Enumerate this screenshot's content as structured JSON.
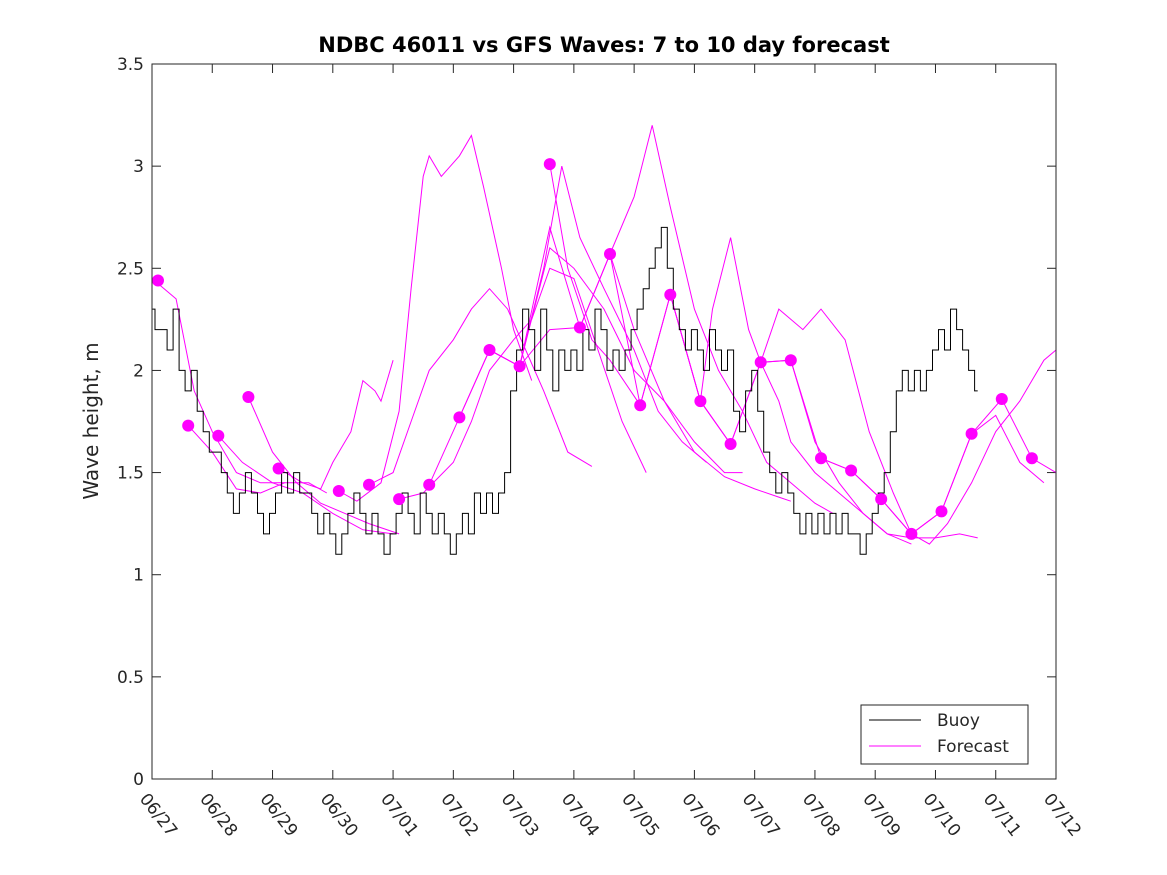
{
  "chart_data": {
    "type": "line",
    "title": "NDBC 46011 vs GFS Waves: 7 to 10 day forecast",
    "xlabel": "",
    "ylabel": "Wave height, m",
    "xlim": [
      "06/27",
      "07/12"
    ],
    "ylim": [
      0,
      3.5
    ],
    "x_ticks": [
      "06/27",
      "06/28",
      "06/29",
      "06/30",
      "07/01",
      "07/02",
      "07/03",
      "07/04",
      "07/05",
      "07/06",
      "07/07",
      "07/08",
      "07/09",
      "07/10",
      "07/11",
      "07/12"
    ],
    "y_ticks": [
      "0",
      "0.5",
      "1",
      "1.5",
      "2",
      "2.5",
      "3",
      "3.5"
    ],
    "legend": {
      "position": "bottom-right",
      "entries": [
        "Buoy",
        "Forecast"
      ]
    },
    "colors": {
      "buoy": "#000000",
      "forecast": "#ff00ff"
    },
    "buoy": {
      "name": "Buoy",
      "points": [
        [
          0.0,
          2.3
        ],
        [
          0.1,
          2.2
        ],
        [
          0.2,
          2.2
        ],
        [
          0.3,
          2.1
        ],
        [
          0.4,
          2.3
        ],
        [
          0.5,
          2.0
        ],
        [
          0.6,
          1.9
        ],
        [
          0.7,
          2.0
        ],
        [
          0.8,
          1.8
        ],
        [
          0.9,
          1.7
        ],
        [
          1.0,
          1.6
        ],
        [
          1.1,
          1.6
        ],
        [
          1.2,
          1.5
        ],
        [
          1.3,
          1.4
        ],
        [
          1.4,
          1.3
        ],
        [
          1.5,
          1.4
        ],
        [
          1.6,
          1.5
        ],
        [
          1.7,
          1.4
        ],
        [
          1.8,
          1.3
        ],
        [
          1.9,
          1.2
        ],
        [
          2.0,
          1.3
        ],
        [
          2.1,
          1.4
        ],
        [
          2.2,
          1.5
        ],
        [
          2.3,
          1.4
        ],
        [
          2.4,
          1.5
        ],
        [
          2.5,
          1.4
        ],
        [
          2.6,
          1.4
        ],
        [
          2.7,
          1.3
        ],
        [
          2.8,
          1.2
        ],
        [
          2.9,
          1.3
        ],
        [
          3.0,
          1.2
        ],
        [
          3.1,
          1.1
        ],
        [
          3.2,
          1.2
        ],
        [
          3.3,
          1.3
        ],
        [
          3.4,
          1.4
        ],
        [
          3.5,
          1.3
        ],
        [
          3.6,
          1.2
        ],
        [
          3.7,
          1.3
        ],
        [
          3.8,
          1.2
        ],
        [
          3.9,
          1.1
        ],
        [
          4.0,
          1.2
        ],
        [
          4.1,
          1.3
        ],
        [
          4.2,
          1.4
        ],
        [
          4.3,
          1.3
        ],
        [
          4.4,
          1.2
        ],
        [
          4.5,
          1.4
        ],
        [
          4.6,
          1.3
        ],
        [
          4.7,
          1.2
        ],
        [
          4.8,
          1.3
        ],
        [
          4.9,
          1.2
        ],
        [
          5.0,
          1.1
        ],
        [
          5.1,
          1.2
        ],
        [
          5.2,
          1.3
        ],
        [
          5.3,
          1.2
        ],
        [
          5.4,
          1.4
        ],
        [
          5.5,
          1.3
        ],
        [
          5.6,
          1.4
        ],
        [
          5.7,
          1.3
        ],
        [
          5.8,
          1.4
        ],
        [
          5.9,
          1.5
        ],
        [
          6.0,
          1.9
        ],
        [
          6.1,
          2.1
        ],
        [
          6.2,
          2.3
        ],
        [
          6.3,
          2.2
        ],
        [
          6.4,
          2.0
        ],
        [
          6.5,
          2.3
        ],
        [
          6.6,
          2.1
        ],
        [
          6.7,
          1.9
        ],
        [
          6.8,
          2.1
        ],
        [
          6.9,
          2.0
        ],
        [
          7.0,
          2.1
        ],
        [
          7.1,
          2.0
        ],
        [
          7.2,
          2.2
        ],
        [
          7.3,
          2.1
        ],
        [
          7.4,
          2.3
        ],
        [
          7.5,
          2.2
        ],
        [
          7.6,
          2.0
        ],
        [
          7.7,
          2.1
        ],
        [
          7.8,
          2.0
        ],
        [
          7.9,
          2.1
        ],
        [
          8.0,
          2.2
        ],
        [
          8.1,
          2.3
        ],
        [
          8.2,
          2.4
        ],
        [
          8.3,
          2.5
        ],
        [
          8.4,
          2.6
        ],
        [
          8.5,
          2.7
        ],
        [
          8.6,
          2.5
        ],
        [
          8.7,
          2.3
        ],
        [
          8.8,
          2.2
        ],
        [
          8.9,
          2.1
        ],
        [
          9.0,
          2.2
        ],
        [
          9.1,
          2.1
        ],
        [
          9.2,
          2.0
        ],
        [
          9.3,
          2.2
        ],
        [
          9.4,
          2.1
        ],
        [
          9.5,
          2.0
        ],
        [
          9.6,
          2.1
        ],
        [
          9.7,
          1.8
        ],
        [
          9.8,
          1.7
        ],
        [
          9.9,
          1.9
        ],
        [
          10.0,
          2.0
        ],
        [
          10.1,
          1.8
        ],
        [
          10.2,
          1.6
        ],
        [
          10.3,
          1.5
        ],
        [
          10.4,
          1.4
        ],
        [
          10.5,
          1.5
        ],
        [
          10.6,
          1.4
        ],
        [
          10.7,
          1.3
        ],
        [
          10.8,
          1.2
        ],
        [
          10.9,
          1.3
        ],
        [
          11.0,
          1.2
        ],
        [
          11.1,
          1.3
        ],
        [
          11.2,
          1.2
        ],
        [
          11.3,
          1.3
        ],
        [
          11.4,
          1.2
        ],
        [
          11.5,
          1.3
        ],
        [
          11.6,
          1.2
        ],
        [
          11.7,
          1.2
        ],
        [
          11.8,
          1.1
        ],
        [
          11.9,
          1.2
        ],
        [
          12.0,
          1.3
        ],
        [
          12.1,
          1.4
        ],
        [
          12.2,
          1.5
        ],
        [
          12.3,
          1.7
        ],
        [
          12.4,
          1.9
        ],
        [
          12.5,
          2.0
        ],
        [
          12.6,
          1.9
        ],
        [
          12.7,
          2.0
        ],
        [
          12.8,
          1.9
        ],
        [
          12.9,
          2.0
        ],
        [
          13.0,
          2.1
        ],
        [
          13.1,
          2.2
        ],
        [
          13.2,
          2.1
        ],
        [
          13.3,
          2.3
        ],
        [
          13.4,
          2.2
        ],
        [
          13.5,
          2.1
        ],
        [
          13.6,
          2.0
        ],
        [
          13.7,
          1.9
        ]
      ]
    },
    "forecast_series": [
      [
        [
          0.0,
          2.45
        ],
        [
          0.4,
          2.35
        ],
        [
          0.7,
          1.9
        ],
        [
          1.0,
          1.7
        ],
        [
          1.4,
          1.5
        ],
        [
          1.8,
          1.45
        ],
        [
          2.2,
          1.45
        ]
      ],
      [
        [
          0.6,
          1.73
        ],
        [
          1.0,
          1.6
        ],
        [
          1.4,
          1.42
        ],
        [
          1.8,
          1.4
        ],
        [
          2.2,
          1.45
        ],
        [
          2.6,
          1.45
        ],
        [
          2.9,
          1.4
        ]
      ],
      [
        [
          1.1,
          1.68
        ],
        [
          1.5,
          1.55
        ],
        [
          2.0,
          1.45
        ],
        [
          2.5,
          1.4
        ],
        [
          3.0,
          1.3
        ],
        [
          3.5,
          1.22
        ],
        [
          4.0,
          1.2
        ]
      ],
      [
        [
          1.6,
          1.87
        ],
        [
          2.0,
          1.6
        ],
        [
          2.4,
          1.45
        ],
        [
          2.8,
          1.35
        ],
        [
          3.2,
          1.3
        ],
        [
          3.6,
          1.25
        ],
        [
          4.1,
          1.2
        ]
      ],
      [
        [
          2.1,
          1.52
        ],
        [
          2.5,
          1.45
        ],
        [
          2.8,
          1.42
        ],
        [
          3.0,
          1.55
        ],
        [
          3.3,
          1.7
        ],
        [
          3.5,
          1.95
        ],
        [
          3.7,
          1.9
        ],
        [
          3.8,
          1.85
        ],
        [
          4.0,
          2.05
        ]
      ],
      [
        [
          3.1,
          1.41
        ],
        [
          3.4,
          1.36
        ],
        [
          3.8,
          1.45
        ],
        [
          4.1,
          1.8
        ],
        [
          4.3,
          2.4
        ],
        [
          4.5,
          2.95
        ],
        [
          4.6,
          3.05
        ],
        [
          4.8,
          2.95
        ],
        [
          5.1,
          3.05
        ],
        [
          5.3,
          3.15
        ],
        [
          5.5,
          2.9
        ],
        [
          5.8,
          2.5
        ],
        [
          6.0,
          2.2
        ],
        [
          6.3,
          1.95
        ]
      ],
      [
        [
          3.6,
          1.44
        ],
        [
          4.0,
          1.5
        ],
        [
          4.3,
          1.75
        ],
        [
          4.6,
          2.0
        ],
        [
          5.0,
          2.15
        ],
        [
          5.3,
          2.3
        ],
        [
          5.6,
          2.4
        ],
        [
          5.9,
          2.3
        ],
        [
          6.2,
          2.1
        ],
        [
          6.5,
          1.9
        ],
        [
          6.9,
          1.6
        ],
        [
          7.3,
          1.53
        ]
      ],
      [
        [
          4.1,
          1.37
        ],
        [
          4.5,
          1.4
        ],
        [
          5.0,
          1.55
        ],
        [
          5.3,
          1.75
        ],
        [
          5.6,
          2.0
        ],
        [
          6.0,
          2.15
        ],
        [
          6.3,
          2.25
        ],
        [
          6.6,
          2.5
        ],
        [
          7.0,
          2.45
        ],
        [
          7.4,
          2.1
        ],
        [
          7.8,
          1.75
        ],
        [
          8.2,
          1.5
        ]
      ],
      [
        [
          4.6,
          1.44
        ],
        [
          5.1,
          1.77
        ],
        [
          5.6,
          2.1
        ],
        [
          6.1,
          2.02
        ],
        [
          6.5,
          2.5
        ],
        [
          6.8,
          3.0
        ],
        [
          7.1,
          2.65
        ],
        [
          7.5,
          2.4
        ],
        [
          8.0,
          2.1
        ],
        [
          8.4,
          1.8
        ],
        [
          8.8,
          1.65
        ],
        [
          9.2,
          1.55
        ]
      ],
      [
        [
          5.1,
          1.77
        ],
        [
          5.6,
          2.1
        ],
        [
          6.1,
          2.02
        ],
        [
          6.6,
          2.6
        ],
        [
          7.0,
          2.5
        ],
        [
          7.5,
          2.3
        ],
        [
          8.0,
          2.0
        ],
        [
          8.5,
          1.85
        ],
        [
          9.0,
          1.65
        ],
        [
          9.5,
          1.5
        ],
        [
          9.8,
          1.5
        ]
      ],
      [
        [
          5.6,
          2.1
        ],
        [
          6.1,
          2.02
        ],
        [
          6.6,
          2.2
        ],
        [
          7.1,
          2.21
        ],
        [
          7.6,
          2.57
        ],
        [
          8.0,
          2.2
        ],
        [
          8.5,
          1.85
        ],
        [
          9.0,
          1.6
        ],
        [
          9.5,
          1.48
        ],
        [
          10.0,
          1.42
        ],
        [
          10.4,
          1.38
        ],
        [
          10.6,
          1.36
        ]
      ],
      [
        [
          6.1,
          2.02
        ],
        [
          6.6,
          2.7
        ],
        [
          7.1,
          2.21
        ],
        [
          7.6,
          2.57
        ],
        [
          8.0,
          2.85
        ],
        [
          8.3,
          3.2
        ],
        [
          8.6,
          2.8
        ],
        [
          9.0,
          2.3
        ],
        [
          9.4,
          2.0
        ],
        [
          9.8,
          1.8
        ],
        [
          10.2,
          1.55
        ],
        [
          10.6,
          1.45
        ],
        [
          11.0,
          1.35
        ],
        [
          11.3,
          1.3
        ]
      ],
      [
        [
          6.6,
          3.01
        ],
        [
          6.9,
          2.5
        ],
        [
          7.3,
          2.15
        ],
        [
          7.6,
          2.05
        ],
        [
          8.1,
          1.83
        ],
        [
          8.6,
          2.37
        ],
        [
          9.1,
          1.85
        ],
        [
          9.3,
          2.3
        ],
        [
          9.6,
          2.65
        ],
        [
          9.9,
          2.2
        ],
        [
          10.1,
          2.04
        ],
        [
          10.4,
          1.85
        ],
        [
          10.6,
          1.65
        ],
        [
          11.0,
          1.5
        ],
        [
          11.4,
          1.4
        ],
        [
          11.8,
          1.3
        ],
        [
          12.2,
          1.2
        ],
        [
          12.6,
          1.15
        ]
      ],
      [
        [
          7.6,
          2.57
        ],
        [
          8.1,
          1.83
        ],
        [
          8.6,
          2.37
        ],
        [
          9.1,
          1.85
        ],
        [
          9.6,
          1.64
        ],
        [
          10.1,
          2.04
        ],
        [
          10.6,
          2.05
        ],
        [
          11.0,
          1.65
        ],
        [
          11.4,
          1.45
        ],
        [
          11.8,
          1.3
        ],
        [
          12.2,
          1.2
        ],
        [
          12.6,
          1.18
        ],
        [
          13.0,
          1.18
        ],
        [
          13.4,
          1.2
        ],
        [
          13.7,
          1.18
        ]
      ],
      [
        [
          8.6,
          2.37
        ],
        [
          9.1,
          1.85
        ],
        [
          9.6,
          1.64
        ],
        [
          10.1,
          2.04
        ],
        [
          10.6,
          2.05
        ],
        [
          11.1,
          1.57
        ],
        [
          11.6,
          1.51
        ],
        [
          12.1,
          1.37
        ],
        [
          12.6,
          1.2
        ],
        [
          13.1,
          1.31
        ],
        [
          13.6,
          1.69
        ],
        [
          14.0,
          1.78
        ],
        [
          14.4,
          1.55
        ],
        [
          14.8,
          1.45
        ]
      ],
      [
        [
          10.1,
          2.04
        ],
        [
          10.4,
          2.3
        ],
        [
          10.8,
          2.2
        ],
        [
          11.1,
          2.3
        ],
        [
          11.5,
          2.15
        ],
        [
          11.9,
          1.7
        ],
        [
          12.3,
          1.4
        ],
        [
          12.6,
          1.2
        ],
        [
          12.9,
          1.15
        ],
        [
          13.2,
          1.25
        ],
        [
          13.6,
          1.45
        ],
        [
          14.0,
          1.7
        ],
        [
          14.4,
          1.85
        ],
        [
          14.8,
          2.05
        ],
        [
          15.0,
          2.1
        ]
      ],
      [
        [
          11.1,
          1.57
        ],
        [
          11.6,
          1.51
        ],
        [
          12.1,
          1.37
        ],
        [
          12.6,
          1.2
        ],
        [
          13.1,
          1.31
        ],
        [
          13.6,
          1.69
        ],
        [
          14.1,
          1.86
        ],
        [
          14.6,
          1.57
        ],
        [
          15.0,
          1.5
        ]
      ]
    ],
    "forecast_markers": [
      [
        0.1,
        2.44
      ],
      [
        0.6,
        1.73
      ],
      [
        1.1,
        1.68
      ],
      [
        1.6,
        1.87
      ],
      [
        2.1,
        1.52
      ],
      [
        3.1,
        1.41
      ],
      [
        3.6,
        1.44
      ],
      [
        4.1,
        1.37
      ],
      [
        4.6,
        1.44
      ],
      [
        5.1,
        1.77
      ],
      [
        5.6,
        2.1
      ],
      [
        6.1,
        2.02
      ],
      [
        6.6,
        3.01
      ],
      [
        7.1,
        2.21
      ],
      [
        7.6,
        2.57
      ],
      [
        8.1,
        1.83
      ],
      [
        8.6,
        2.37
      ],
      [
        9.1,
        1.85
      ],
      [
        9.6,
        1.64
      ],
      [
        10.1,
        2.04
      ],
      [
        10.6,
        2.05
      ],
      [
        11.1,
        1.57
      ],
      [
        11.6,
        1.51
      ],
      [
        12.1,
        1.37
      ],
      [
        12.6,
        1.2
      ],
      [
        13.1,
        1.31
      ],
      [
        13.6,
        1.69
      ],
      [
        14.1,
        1.86
      ],
      [
        14.6,
        1.57
      ]
    ]
  }
}
